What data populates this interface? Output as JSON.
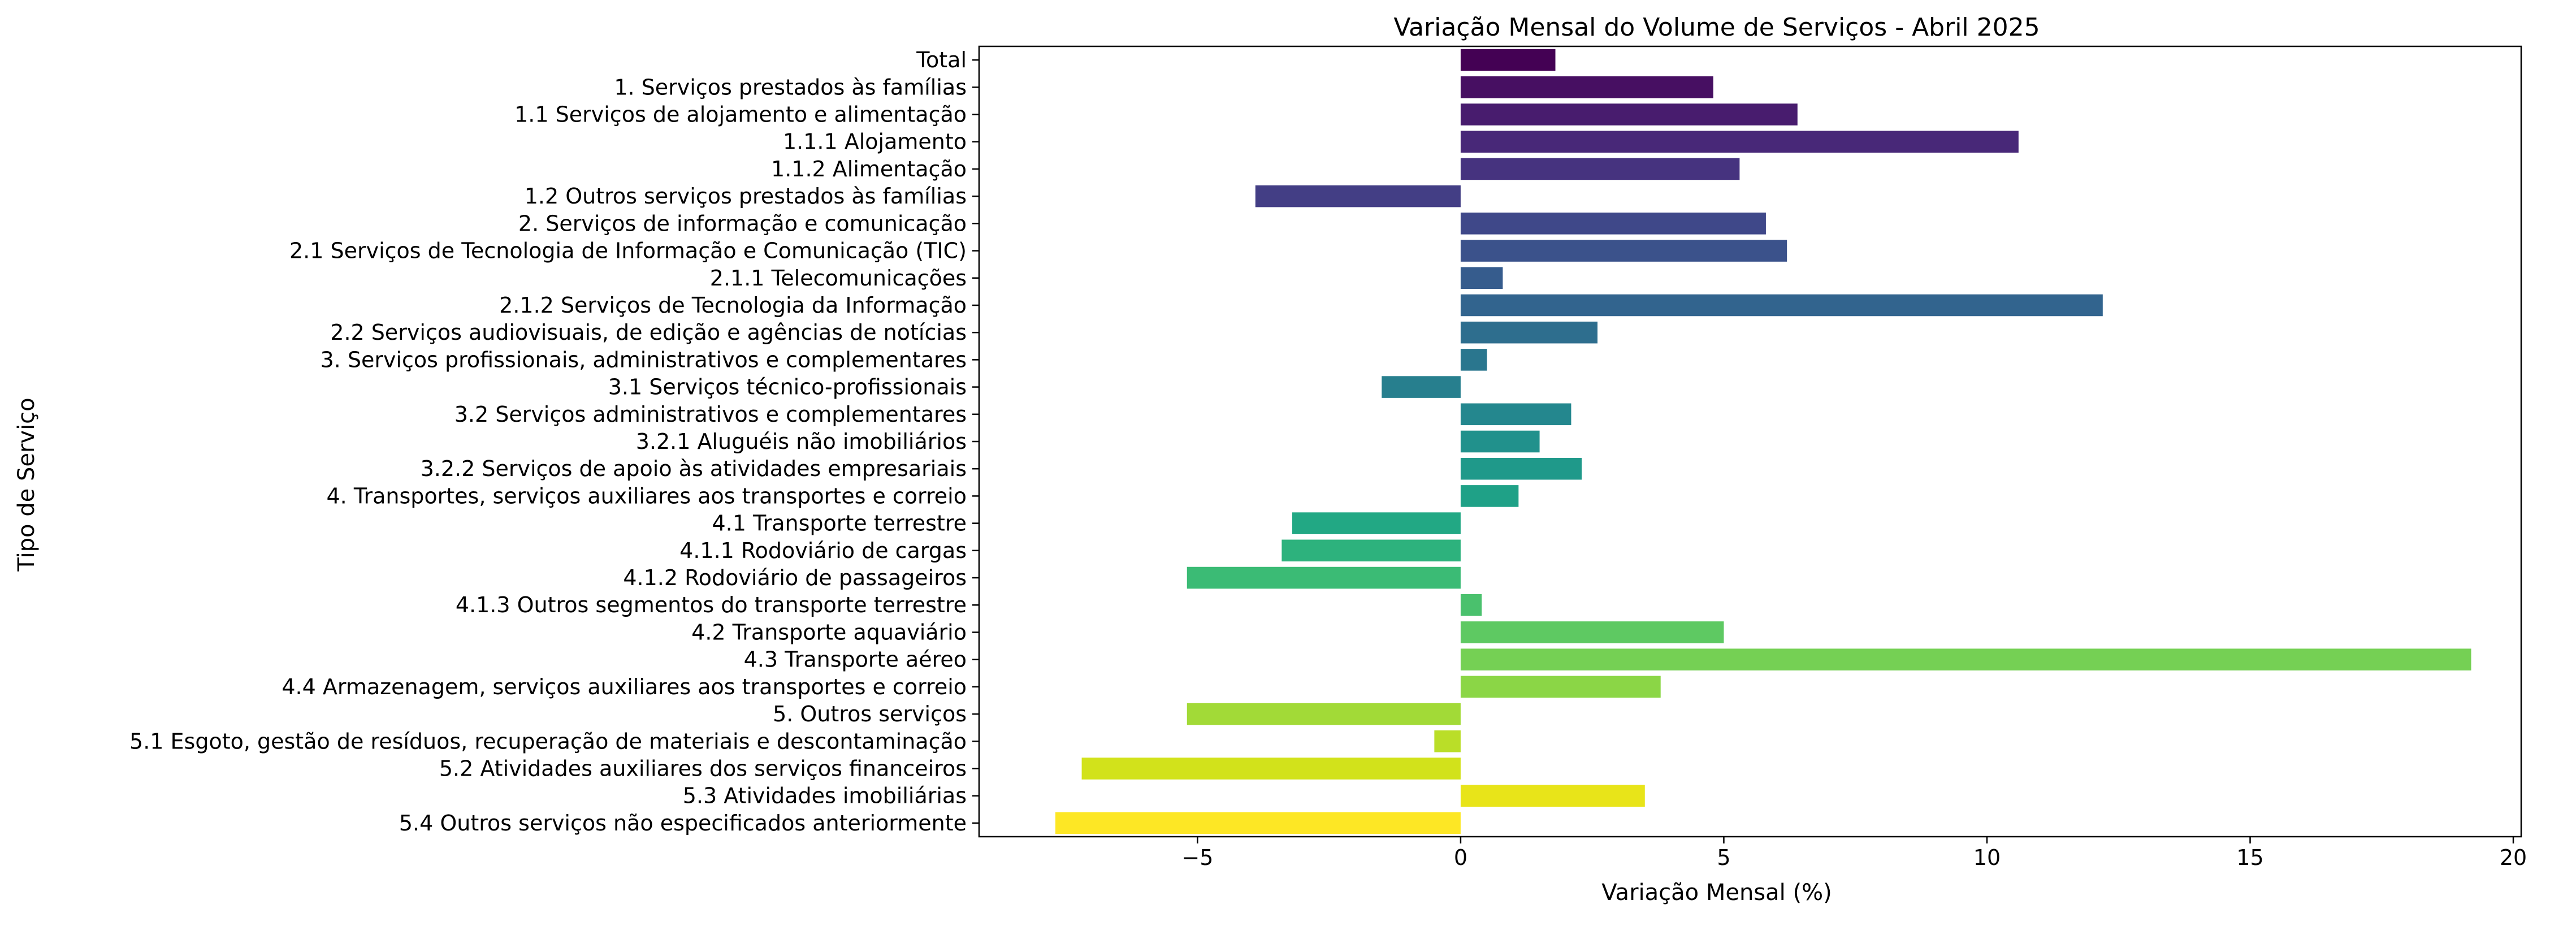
{
  "chart_data": {
    "type": "bar",
    "orientation": "horizontal",
    "title": "Variação Mensal do Volume de Serviços - Abril 2025",
    "xlabel": "Variação Mensal (%)",
    "ylabel": "Tipo de Serviço",
    "xlim": [
      -9.15,
      20.15
    ],
    "xticks": [
      -5,
      0,
      5,
      10,
      15,
      20
    ],
    "xtick_labels": [
      "−5",
      "0",
      "5",
      "10",
      "15",
      "20"
    ],
    "grid": false,
    "legend": "none",
    "palette": "viridis",
    "categories": [
      "Total",
      "1. Serviços prestados às famílias",
      "1.1 Serviços de alojamento e alimentação",
      "1.1.1 Alojamento",
      "1.1.2 Alimentação",
      "1.2 Outros serviços prestados às famílias",
      "2. Serviços de informação e comunicação",
      "2.1 Serviços de Tecnologia de Informação e Comunicação (TIC)",
      "2.1.1 Telecomunicações",
      "2.1.2 Serviços de Tecnologia da Informação",
      "2.2 Serviços audiovisuais, de edição e agências de notícias",
      "3. Serviços profissionais, administrativos e complementares",
      "3.1 Serviços técnico-profissionais",
      "3.2 Serviços administrativos e complementares",
      "3.2.1 Aluguéis não imobiliários",
      "3.2.2 Serviços de apoio às atividades empresariais",
      "4. Transportes, serviços auxiliares aos transportes e correio",
      "4.1 Transporte terrestre",
      "4.1.1 Rodoviário de cargas",
      "4.1.2 Rodoviário de passageiros",
      "4.1.3 Outros segmentos do transporte terrestre",
      "4.2 Transporte aquaviário",
      "4.3 Transporte aéreo",
      "4.4 Armazenagem, serviços auxiliares aos transportes e correio",
      "5. Outros serviços",
      "5.1 Esgoto, gestão de resíduos, recuperação de materiais e descontaminação",
      "5.2 Atividades auxiliares dos serviços financeiros",
      "5.3 Atividades imobiliárias",
      "5.4 Outros serviços não especificados anteriormente"
    ],
    "values": [
      1.8,
      4.8,
      6.4,
      10.6,
      5.3,
      -3.9,
      5.8,
      6.2,
      0.8,
      12.2,
      2.6,
      0.5,
      -1.5,
      2.1,
      1.5,
      2.3,
      1.1,
      -3.2,
      -3.4,
      -5.2,
      0.4,
      5.0,
      19.2,
      3.8,
      -5.2,
      -0.5,
      -7.2,
      3.5,
      -7.7
    ],
    "colors": [
      "#440154",
      "#470f62",
      "#481c6e",
      "#482878",
      "#46337f",
      "#433e85",
      "#3f4889",
      "#3b528b",
      "#365c8d",
      "#32648e",
      "#2e6e8e",
      "#2a768e",
      "#277f8e",
      "#24878e",
      "#21918c",
      "#1f998a",
      "#1fa187",
      "#22a884",
      "#2db27d",
      "#3bbb75",
      "#4ac16d",
      "#5ec962",
      "#75d054",
      "#8bd646",
      "#a2da37",
      "#bade28",
      "#d2e21b",
      "#e8e419",
      "#fde725"
    ]
  }
}
